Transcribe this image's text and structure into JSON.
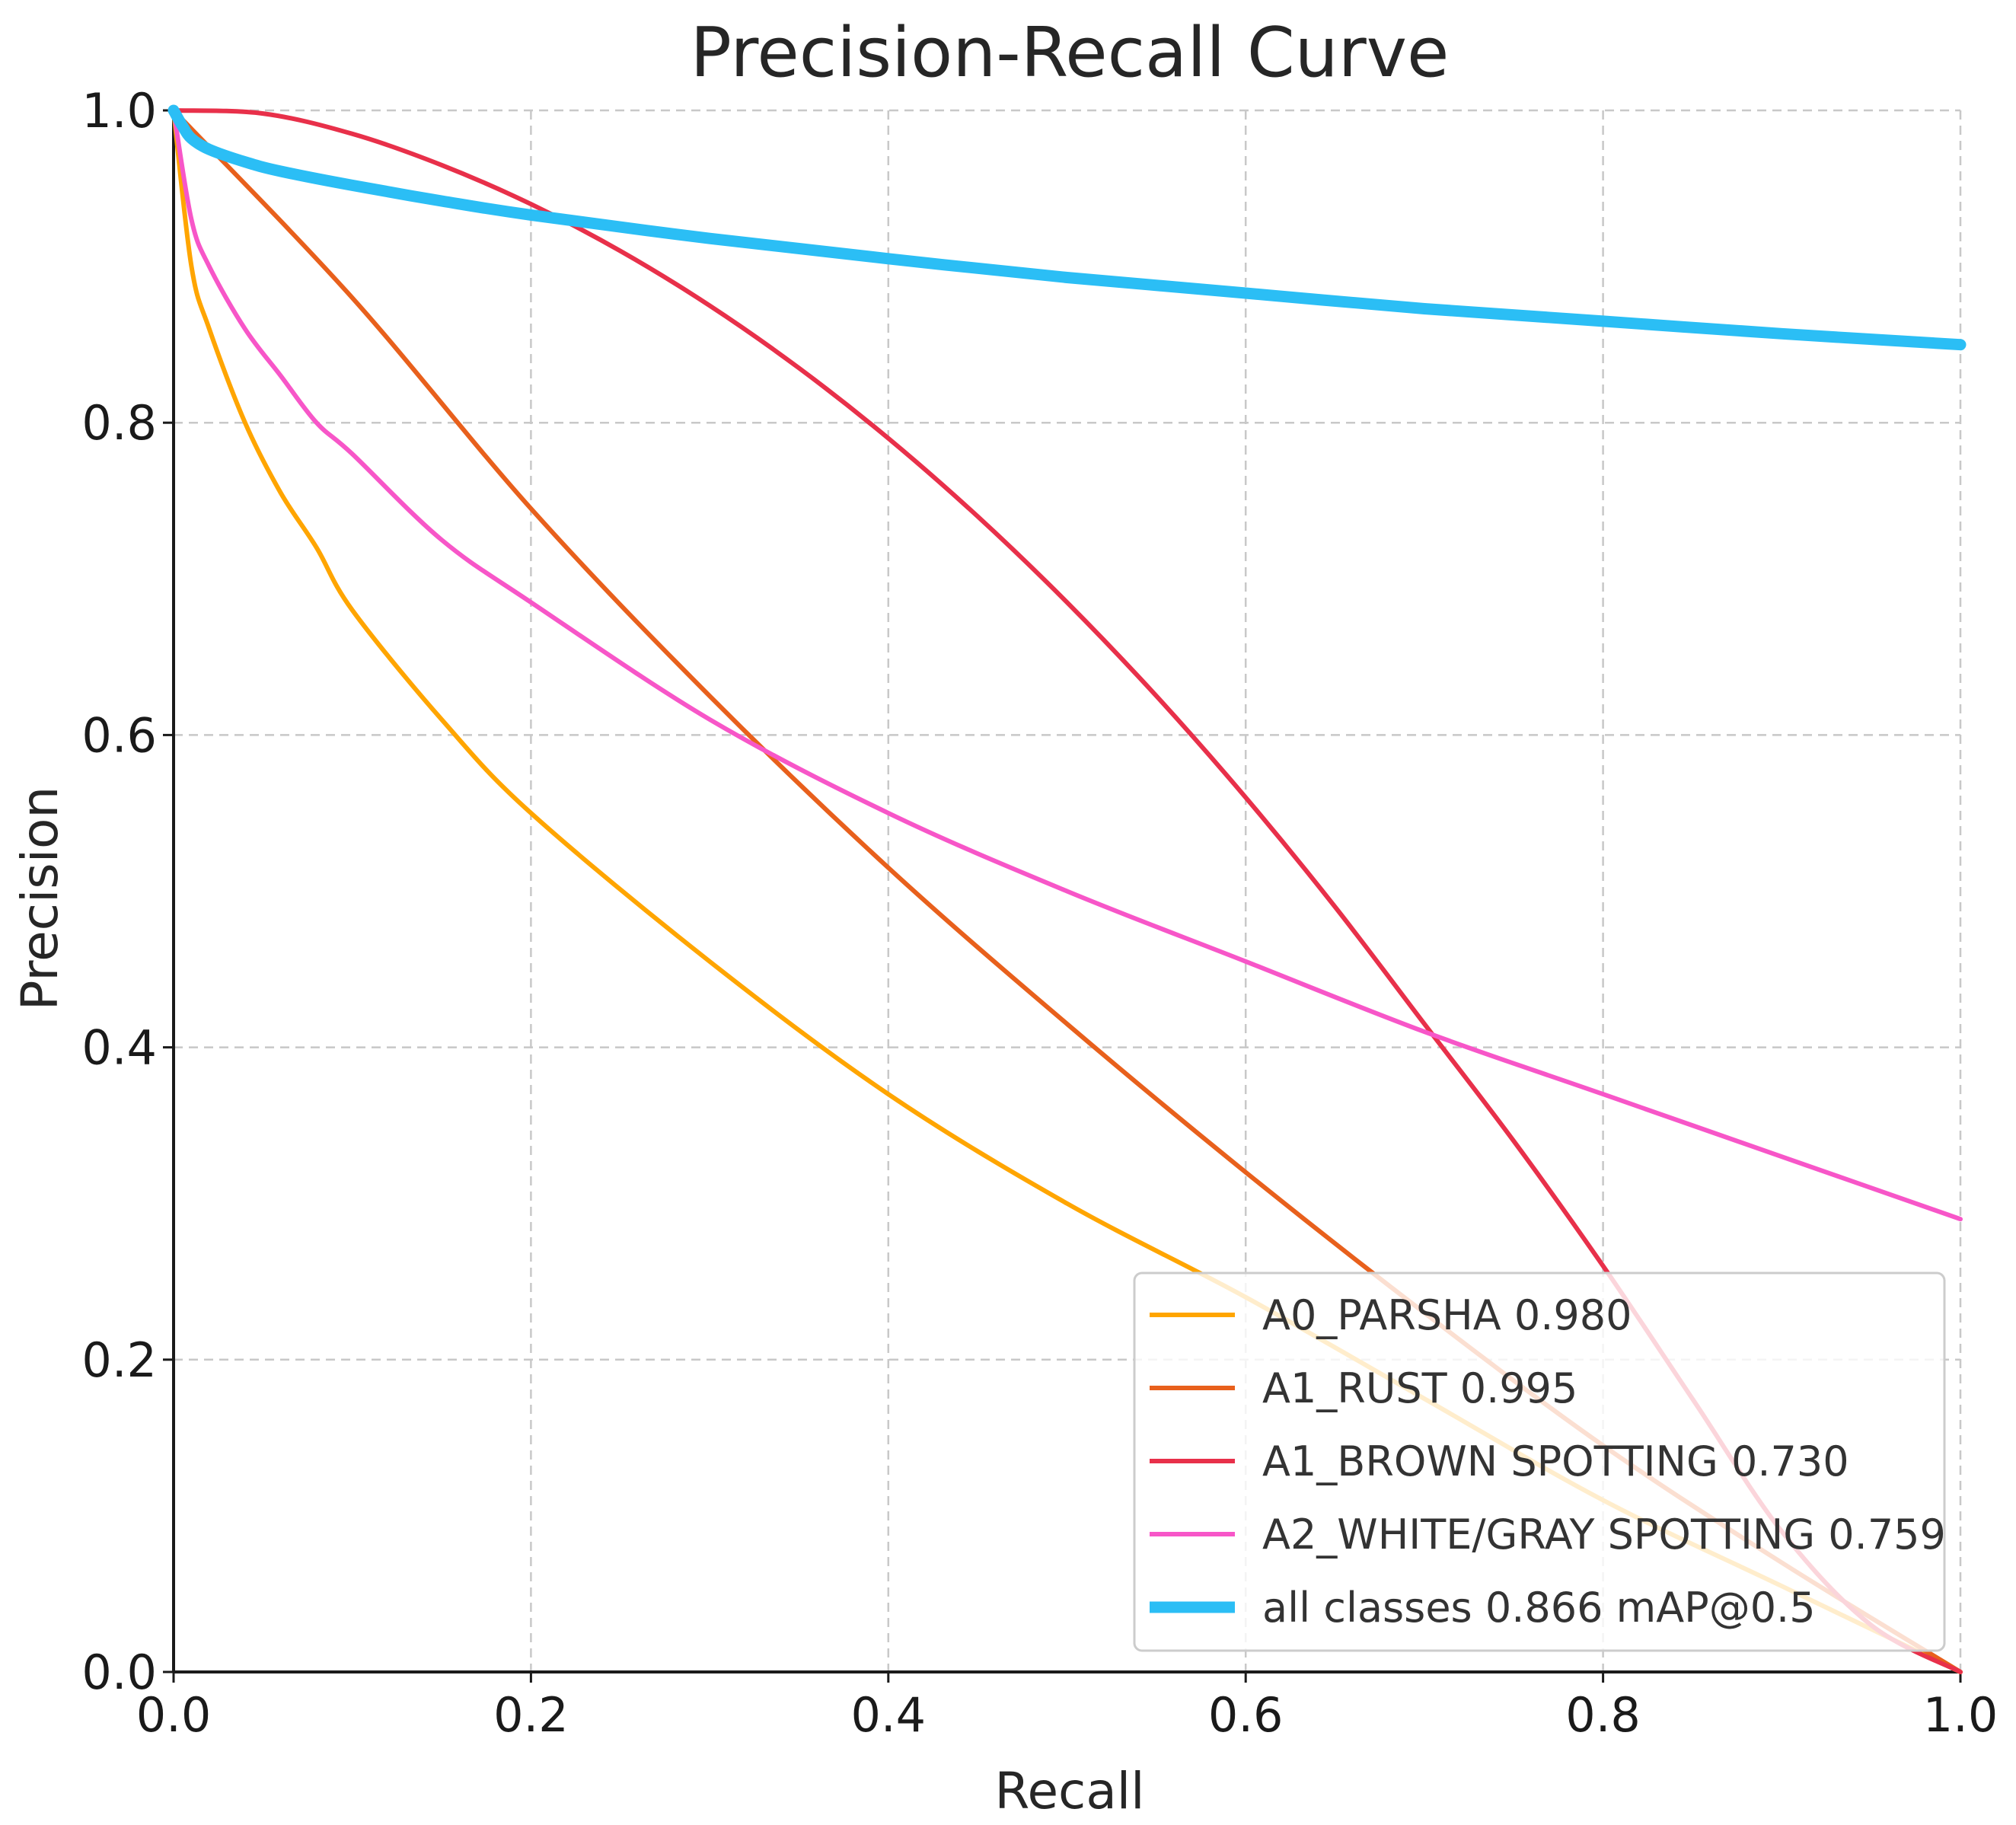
{
  "chart_data": {
    "type": "line",
    "title": "Precision-Recall Curve",
    "xlabel": "Recall",
    "ylabel": "Precision",
    "xlim": [
      0.0,
      1.0
    ],
    "ylim": [
      0.0,
      1.0
    ],
    "xticks": [
      "0.0",
      "0.2",
      "0.4",
      "0.6",
      "0.8",
      "1.0"
    ],
    "yticks": [
      "0.0",
      "0.2",
      "0.4",
      "0.6",
      "0.8",
      "1.0"
    ],
    "grid": true,
    "legend_position": "bottom-right",
    "series": [
      {
        "name": "A0_PARSHA 0.980",
        "color": "#FFA500",
        "x": [
          0.0,
          0.01,
          0.02,
          0.04,
          0.06,
          0.08,
          0.1,
          0.15,
          0.2,
          0.3,
          0.4,
          0.5,
          0.6,
          0.7,
          0.8,
          0.9,
          1.0
        ],
        "y": [
          1.0,
          0.9,
          0.86,
          0.8,
          0.755,
          0.72,
          0.68,
          0.61,
          0.55,
          0.455,
          0.37,
          0.3,
          0.24,
          0.175,
          0.11,
          0.055,
          0.0
        ]
      },
      {
        "name": "A1_RUST 0.995",
        "color": "#E8601C",
        "x": [
          0.0,
          0.1,
          0.2,
          0.3,
          0.4,
          0.5,
          0.6,
          0.7,
          0.8,
          0.9,
          1.0
        ],
        "y": [
          1.0,
          0.88,
          0.745,
          0.625,
          0.515,
          0.415,
          0.32,
          0.23,
          0.145,
          0.07,
          0.0
        ]
      },
      {
        "name": "A1_BROWN SPOTTING 0.730",
        "color": "#E8304A",
        "x": [
          0.0,
          0.05,
          0.1,
          0.15,
          0.2,
          0.25,
          0.3,
          0.35,
          0.4,
          0.45,
          0.5,
          0.55,
          0.6,
          0.65,
          0.7,
          0.75,
          0.8,
          0.85,
          0.9,
          0.95,
          1.0
        ],
        "y": [
          1.0,
          0.998,
          0.985,
          0.965,
          0.94,
          0.91,
          0.875,
          0.835,
          0.79,
          0.74,
          0.685,
          0.625,
          0.56,
          0.49,
          0.415,
          0.34,
          0.26,
          0.175,
          0.09,
          0.03,
          0.0
        ]
      },
      {
        "name": "A2_WHITE/GRAY SPOTTING 0.759",
        "color": "#F756C8",
        "x": [
          0.0,
          0.01,
          0.02,
          0.04,
          0.06,
          0.08,
          0.1,
          0.15,
          0.2,
          0.3,
          0.4,
          0.5,
          0.6,
          0.7,
          0.8,
          0.9,
          1.0
        ],
        "y": [
          1.0,
          0.93,
          0.9,
          0.86,
          0.83,
          0.8,
          0.78,
          0.725,
          0.685,
          0.61,
          0.55,
          0.5,
          0.455,
          0.41,
          0.37,
          0.33,
          0.29
        ]
      },
      {
        "name": "all classes 0.866 mAP@0.5",
        "color": "#2BBEF5",
        "x": [
          0.0,
          0.005,
          0.01,
          0.02,
          0.04,
          0.06,
          0.1,
          0.15,
          0.2,
          0.3,
          0.4,
          0.5,
          0.6,
          0.7,
          0.8,
          0.9,
          1.0
        ],
        "y": [
          1.0,
          0.99,
          0.982,
          0.975,
          0.967,
          0.961,
          0.952,
          0.942,
          0.933,
          0.918,
          0.905,
          0.893,
          0.883,
          0.873,
          0.865,
          0.857,
          0.85
        ]
      }
    ]
  }
}
